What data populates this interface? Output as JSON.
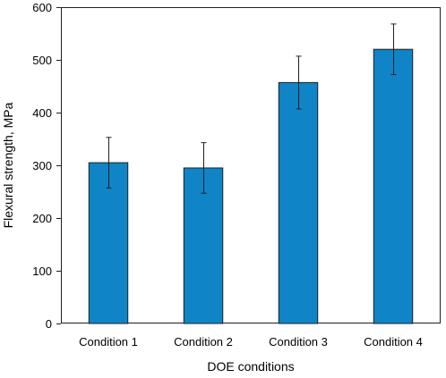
{
  "chart_data": {
    "type": "bar",
    "title": "",
    "xlabel": "DOE conditions",
    "ylabel": "Flexural strength, MPa",
    "categories": [
      "Condition 1",
      "Condition 2",
      "Condition 3",
      "Condition 4"
    ],
    "values": [
      305,
      295,
      457,
      520
    ],
    "error": [
      48,
      48,
      50,
      48
    ],
    "ylim": [
      0,
      600
    ],
    "yticks": [
      0,
      100,
      200,
      300,
      400,
      500,
      600
    ],
    "ytick_labels": [
      "0",
      "100",
      "200",
      "300",
      "400",
      "500",
      "600"
    ],
    "grid": false,
    "legend": "none",
    "bar_color": "#0f84c6",
    "bar_edge_color": "#1f1f1f",
    "errorbar_color": "#1f1f1f",
    "axis_color": "#1f1f1f"
  }
}
